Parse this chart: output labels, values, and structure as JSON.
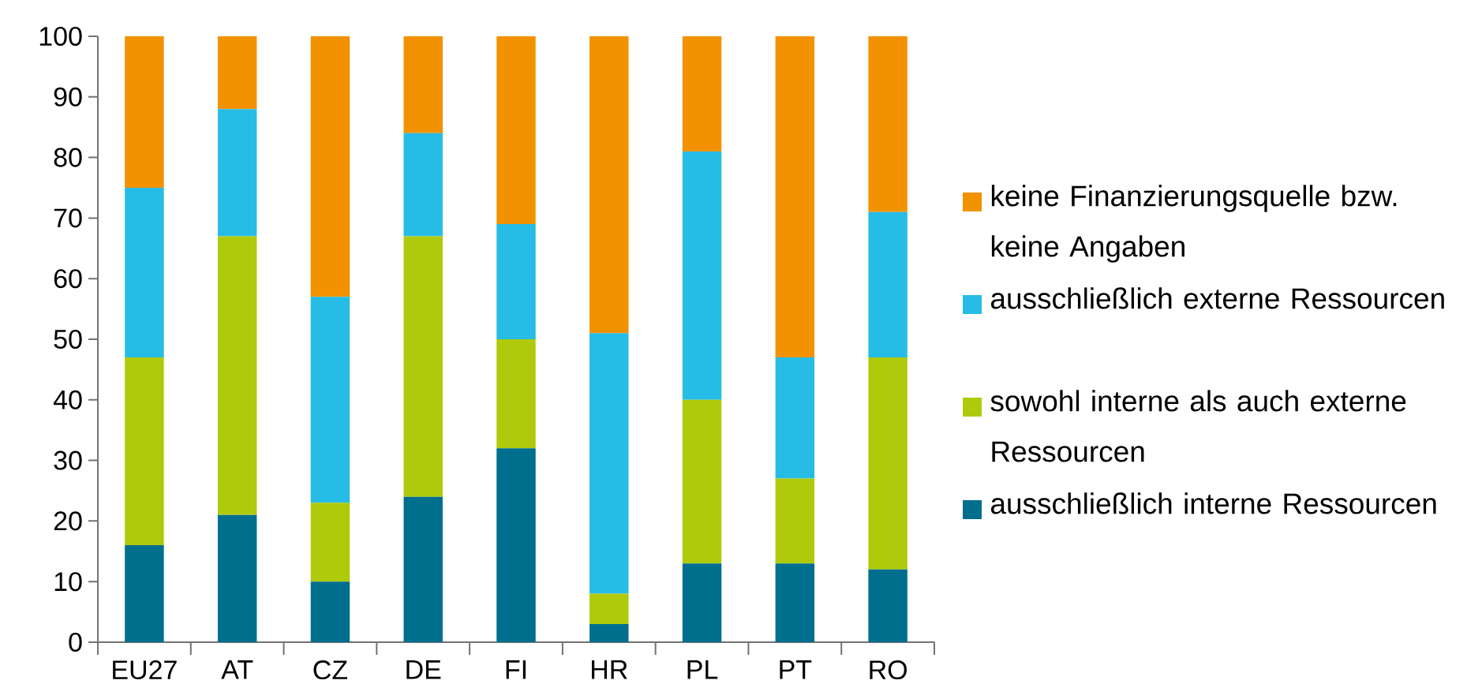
{
  "chart_data": {
    "type": "bar",
    "stacked": true,
    "categories": [
      "EU27",
      "AT",
      "CZ",
      "DE",
      "FI",
      "HR",
      "PL",
      "PT",
      "RO"
    ],
    "series": [
      {
        "name": "ausschließlich interne Ressourcen",
        "color": "#006f8e",
        "values": [
          16,
          21,
          10,
          24,
          32,
          3,
          13,
          13,
          12
        ]
      },
      {
        "name": "sowohl interne als auch externe Ressourcen",
        "color": "#afca0b",
        "values": [
          31,
          46,
          13,
          43,
          18,
          5,
          27,
          14,
          35
        ]
      },
      {
        "name": "ausschließlich externe Ressourcen",
        "color": "#27bce6",
        "values": [
          28,
          21,
          34,
          17,
          19,
          43,
          41,
          20,
          24
        ]
      },
      {
        "name": "keine Finanzierungsquelle bzw. keine Angaben",
        "color": "#f39200",
        "values": [
          25,
          12,
          43,
          16,
          31,
          49,
          19,
          53,
          29
        ]
      }
    ],
    "ylim": [
      0,
      100
    ],
    "yticks": [
      0,
      10,
      20,
      30,
      40,
      50,
      60,
      70,
      80,
      90,
      100
    ],
    "grid": false,
    "legend": "right"
  }
}
